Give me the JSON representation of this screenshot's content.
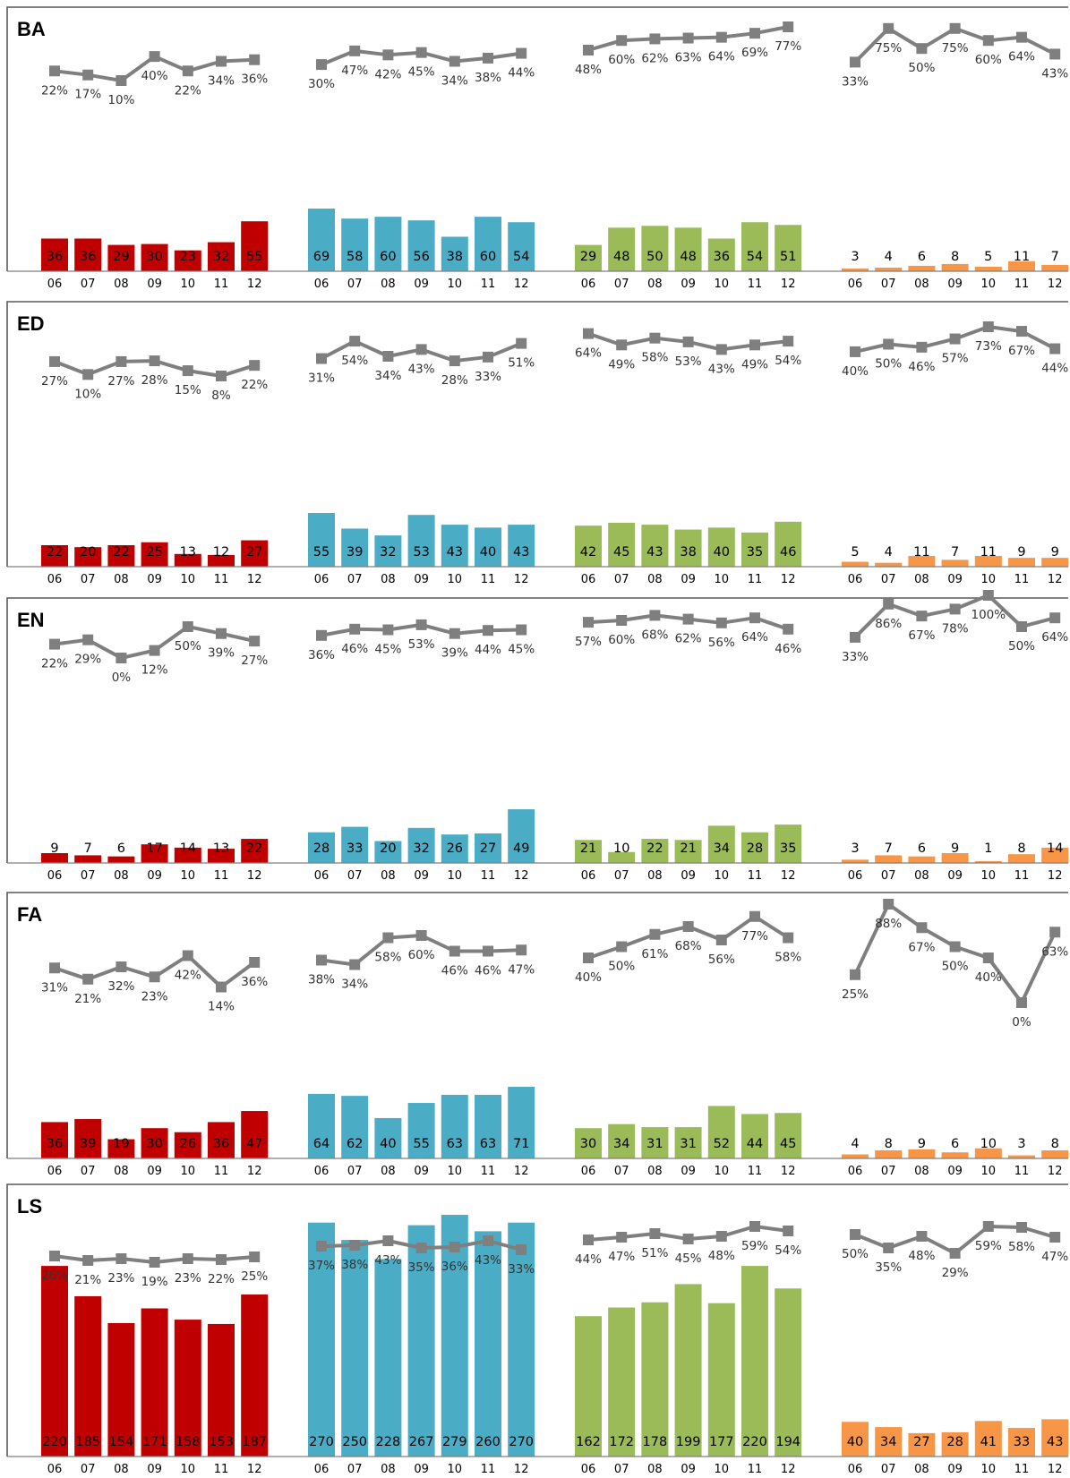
{
  "colors": {
    "group_1": "#c00000",
    "group_2": "#4bacc6",
    "group_3": "#9bbb59",
    "group_4": "#f79646",
    "trend": "#7f7f7f"
  },
  "chart_data": {
    "type": "bar",
    "categories": [
      "06",
      "07",
      "08",
      "09",
      "10",
      "11",
      "12"
    ],
    "panels": [
      {
        "title": "BA",
        "groups": [
          {
            "counts": [
              36,
              36,
              29,
              30,
              23,
              32,
              55
            ],
            "percents": [
              "22%",
              "17%",
              "10%",
              "40%",
              "22%",
              "34%",
              "36%"
            ],
            "pct": [
              22,
              17,
              10,
              40,
              22,
              34,
              36
            ]
          },
          {
            "counts": [
              69,
              58,
              60,
              56,
              38,
              60,
              54
            ],
            "percents": [
              "30%",
              "47%",
              "42%",
              "45%",
              "34%",
              "38%",
              "44%"
            ],
            "pct": [
              30,
              47,
              42,
              45,
              34,
              38,
              44
            ]
          },
          {
            "counts": [
              29,
              48,
              50,
              48,
              36,
              54,
              51
            ],
            "percents": [
              "48%",
              "60%",
              "62%",
              "63%",
              "64%",
              "69%",
              "77%"
            ],
            "pct": [
              48,
              60,
              62,
              63,
              64,
              69,
              77
            ]
          },
          {
            "counts": [
              3,
              4,
              6,
              8,
              5,
              11,
              7
            ],
            "percents": [
              "33%",
              "75%",
              "50%",
              "75%",
              "60%",
              "64%",
              "43%"
            ],
            "pct": [
              33,
              75,
              50,
              75,
              60,
              64,
              43
            ]
          }
        ]
      },
      {
        "title": "ED",
        "groups": [
          {
            "counts": [
              22,
              20,
              22,
              25,
              13,
              12,
              27
            ],
            "percents": [
              "27%",
              "10%",
              "27%",
              "28%",
              "15%",
              "8%",
              "22%"
            ],
            "pct": [
              27,
              10,
              27,
              28,
              15,
              8,
              22
            ]
          },
          {
            "counts": [
              55,
              39,
              32,
              53,
              43,
              40,
              43
            ],
            "percents": [
              "31%",
              "54%",
              "34%",
              "43%",
              "28%",
              "33%",
              "51%"
            ],
            "pct": [
              31,
              54,
              34,
              43,
              28,
              33,
              51
            ]
          },
          {
            "counts": [
              42,
              45,
              43,
              38,
              40,
              35,
              46
            ],
            "percents": [
              "64%",
              "49%",
              "58%",
              "53%",
              "43%",
              "49%",
              "54%"
            ],
            "pct": [
              64,
              49,
              58,
              53,
              43,
              49,
              54
            ]
          },
          {
            "counts": [
              5,
              4,
              11,
              7,
              11,
              9,
              9
            ],
            "percents": [
              "40%",
              "50%",
              "46%",
              "57%",
              "73%",
              "67%",
              "44%"
            ],
            "pct": [
              40,
              50,
              46,
              57,
              73,
              67,
              44
            ]
          }
        ]
      },
      {
        "title": "EN",
        "groups": [
          {
            "counts": [
              9,
              7,
              6,
              17,
              14,
              13,
              22
            ],
            "percents": [
              "22%",
              "29%",
              "0%",
              "12%",
              "50%",
              "39%",
              "27%"
            ],
            "pct": [
              22,
              29,
              0,
              12,
              50,
              39,
              27
            ]
          },
          {
            "counts": [
              28,
              33,
              20,
              32,
              26,
              27,
              49
            ],
            "percents": [
              "36%",
              "46%",
              "45%",
              "53%",
              "39%",
              "44%",
              "45%"
            ],
            "pct": [
              36,
              46,
              45,
              53,
              39,
              44,
              45
            ]
          },
          {
            "counts": [
              21,
              10,
              22,
              21,
              34,
              28,
              35
            ],
            "percents": [
              "57%",
              "60%",
              "68%",
              "62%",
              "56%",
              "64%",
              "46%"
            ],
            "pct": [
              57,
              60,
              68,
              62,
              56,
              64,
              46
            ]
          },
          {
            "counts": [
              3,
              7,
              6,
              9,
              1,
              8,
              14
            ],
            "percents": [
              "33%",
              "86%",
              "67%",
              "78%",
              "100%",
              "50%",
              "64%"
            ],
            "pct": [
              33,
              86,
              67,
              78,
              100,
              50,
              64
            ]
          }
        ]
      },
      {
        "title": "FA",
        "groups": [
          {
            "counts": [
              36,
              39,
              19,
              30,
              26,
              36,
              47
            ],
            "percents": [
              "31%",
              "21%",
              "32%",
              "23%",
              "42%",
              "14%",
              "36%"
            ],
            "pct": [
              31,
              21,
              32,
              23,
              42,
              14,
              36
            ]
          },
          {
            "counts": [
              64,
              62,
              40,
              55,
              63,
              63,
              71
            ],
            "percents": [
              "38%",
              "34%",
              "58%",
              "60%",
              "46%",
              "46%",
              "47%"
            ],
            "pct": [
              38,
              34,
              58,
              60,
              46,
              46,
              47
            ]
          },
          {
            "counts": [
              30,
              34,
              31,
              31,
              52,
              44,
              45
            ],
            "percents": [
              "40%",
              "50%",
              "61%",
              "68%",
              "56%",
              "77%",
              "58%"
            ],
            "pct": [
              40,
              50,
              61,
              68,
              56,
              77,
              58
            ]
          },
          {
            "counts": [
              4,
              8,
              9,
              6,
              10,
              3,
              8
            ],
            "percents": [
              "25%",
              "88%",
              "67%",
              "50%",
              "40%",
              "0%",
              "63%"
            ],
            "pct": [
              25,
              88,
              67,
              50,
              40,
              0,
              63
            ]
          }
        ]
      },
      {
        "title": "LS",
        "groups": [
          {
            "counts": [
              220,
              185,
              154,
              171,
              158,
              153,
              187
            ],
            "percents": [
              "26%",
              "21%",
              "23%",
              "19%",
              "23%",
              "22%",
              "25%"
            ],
            "pct": [
              26,
              21,
              23,
              19,
              23,
              22,
              25
            ]
          },
          {
            "counts": [
              270,
              250,
              228,
              267,
              279,
              260,
              270
            ],
            "percents": [
              "37%",
              "38%",
              "43%",
              "35%",
              "36%",
              "43%",
              "33%"
            ],
            "pct": [
              37,
              38,
              43,
              35,
              36,
              43,
              33
            ]
          },
          {
            "counts": [
              162,
              172,
              178,
              199,
              177,
              220,
              194
            ],
            "percents": [
              "44%",
              "47%",
              "51%",
              "45%",
              "48%",
              "59%",
              "54%"
            ],
            "pct": [
              44,
              47,
              51,
              45,
              48,
              59,
              54
            ]
          },
          {
            "counts": [
              40,
              34,
              27,
              28,
              41,
              33,
              43
            ],
            "percents": [
              "50%",
              "35%",
              "48%",
              "29%",
              "59%",
              "58%",
              "47%"
            ],
            "pct": [
              50,
              35,
              48,
              29,
              59,
              58,
              47
            ]
          }
        ]
      }
    ]
  }
}
